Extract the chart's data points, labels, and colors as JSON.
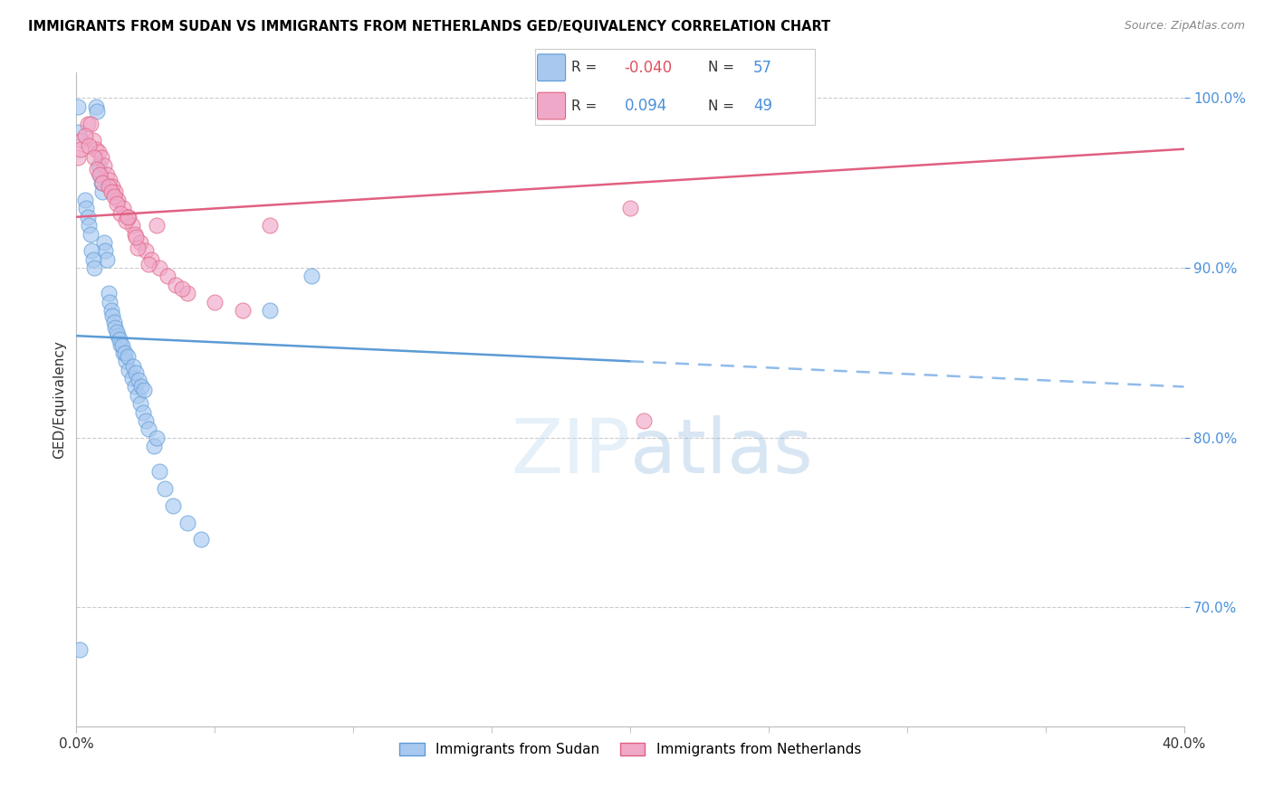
{
  "title": "IMMIGRANTS FROM SUDAN VS IMMIGRANTS FROM NETHERLANDS GED/EQUIVALENCY CORRELATION CHART",
  "source": "Source: ZipAtlas.com",
  "ylabel": "GED/Equivalency",
  "xmin": 0.0,
  "xmax": 40.0,
  "ymin": 63.0,
  "ymax": 101.5,
  "yticks": [
    70.0,
    80.0,
    90.0,
    100.0
  ],
  "legend_r_sudan": "-0.040",
  "legend_n_sudan": "57",
  "legend_r_netherlands": "0.094",
  "legend_n_netherlands": "49",
  "color_sudan_fill": "#a8c8f0",
  "color_netherlands_fill": "#f0a8c8",
  "color_sudan_line": "#5b9bd5",
  "color_netherlands_line": "#e06080",
  "color_dashed": "#90bbea",
  "sudan_line_y0": 86.0,
  "sudan_line_y40": 83.0,
  "sudan_solid_end_x": 20.0,
  "neth_line_y0": 93.0,
  "neth_line_y40": 97.0,
  "sudan_x": [
    0.05,
    0.08,
    0.7,
    0.75,
    0.8,
    0.85,
    0.9,
    0.95,
    1.0,
    1.05,
    1.1,
    1.15,
    1.2,
    1.25,
    1.3,
    1.35,
    1.4,
    1.5,
    1.6,
    1.7,
    1.8,
    1.9,
    2.0,
    2.1,
    2.2,
    2.3,
    2.4,
    2.5,
    2.6,
    2.8,
    3.0,
    3.2,
    3.5,
    4.0,
    4.5,
    0.3,
    0.35,
    0.4,
    0.45,
    0.5,
    0.55,
    0.6,
    0.65,
    1.45,
    1.55,
    1.65,
    1.75,
    1.85,
    2.05,
    2.15,
    2.25,
    2.35,
    2.45,
    7.0,
    8.5,
    2.9,
    0.12
  ],
  "sudan_y": [
    99.5,
    98.0,
    99.5,
    99.2,
    96.0,
    95.5,
    95.0,
    94.5,
    91.5,
    91.0,
    90.5,
    88.5,
    88.0,
    87.5,
    87.2,
    86.8,
    86.5,
    86.0,
    85.5,
    85.0,
    84.5,
    84.0,
    83.5,
    83.0,
    82.5,
    82.0,
    81.5,
    81.0,
    80.5,
    79.5,
    78.0,
    77.0,
    76.0,
    75.0,
    74.0,
    94.0,
    93.5,
    93.0,
    92.5,
    92.0,
    91.0,
    90.5,
    90.0,
    86.2,
    85.8,
    85.4,
    85.0,
    84.8,
    84.2,
    83.8,
    83.4,
    83.0,
    82.8,
    87.5,
    89.5,
    80.0,
    67.5
  ],
  "netherlands_x": [
    0.05,
    0.2,
    0.4,
    0.5,
    0.6,
    0.7,
    0.8,
    0.9,
    1.0,
    1.1,
    1.2,
    1.3,
    1.4,
    1.5,
    1.7,
    1.9,
    2.0,
    2.1,
    2.3,
    2.5,
    2.7,
    3.0,
    3.3,
    3.6,
    4.0,
    5.0,
    6.0,
    0.15,
    0.3,
    0.45,
    0.65,
    0.75,
    0.85,
    0.95,
    1.15,
    1.25,
    1.35,
    1.45,
    1.6,
    1.8,
    2.2,
    2.6,
    3.8,
    20.0,
    20.5,
    7.0,
    2.9,
    1.85,
    2.15
  ],
  "netherlands_y": [
    96.5,
    97.5,
    98.5,
    98.5,
    97.5,
    97.0,
    96.8,
    96.5,
    96.0,
    95.5,
    95.2,
    94.8,
    94.5,
    94.0,
    93.5,
    93.0,
    92.5,
    92.0,
    91.5,
    91.0,
    90.5,
    90.0,
    89.5,
    89.0,
    88.5,
    88.0,
    87.5,
    97.0,
    97.8,
    97.2,
    96.5,
    95.8,
    95.5,
    95.0,
    94.8,
    94.5,
    94.2,
    93.8,
    93.2,
    92.8,
    91.2,
    90.2,
    88.8,
    93.5,
    81.0,
    92.5,
    92.5,
    93.0,
    91.8
  ]
}
